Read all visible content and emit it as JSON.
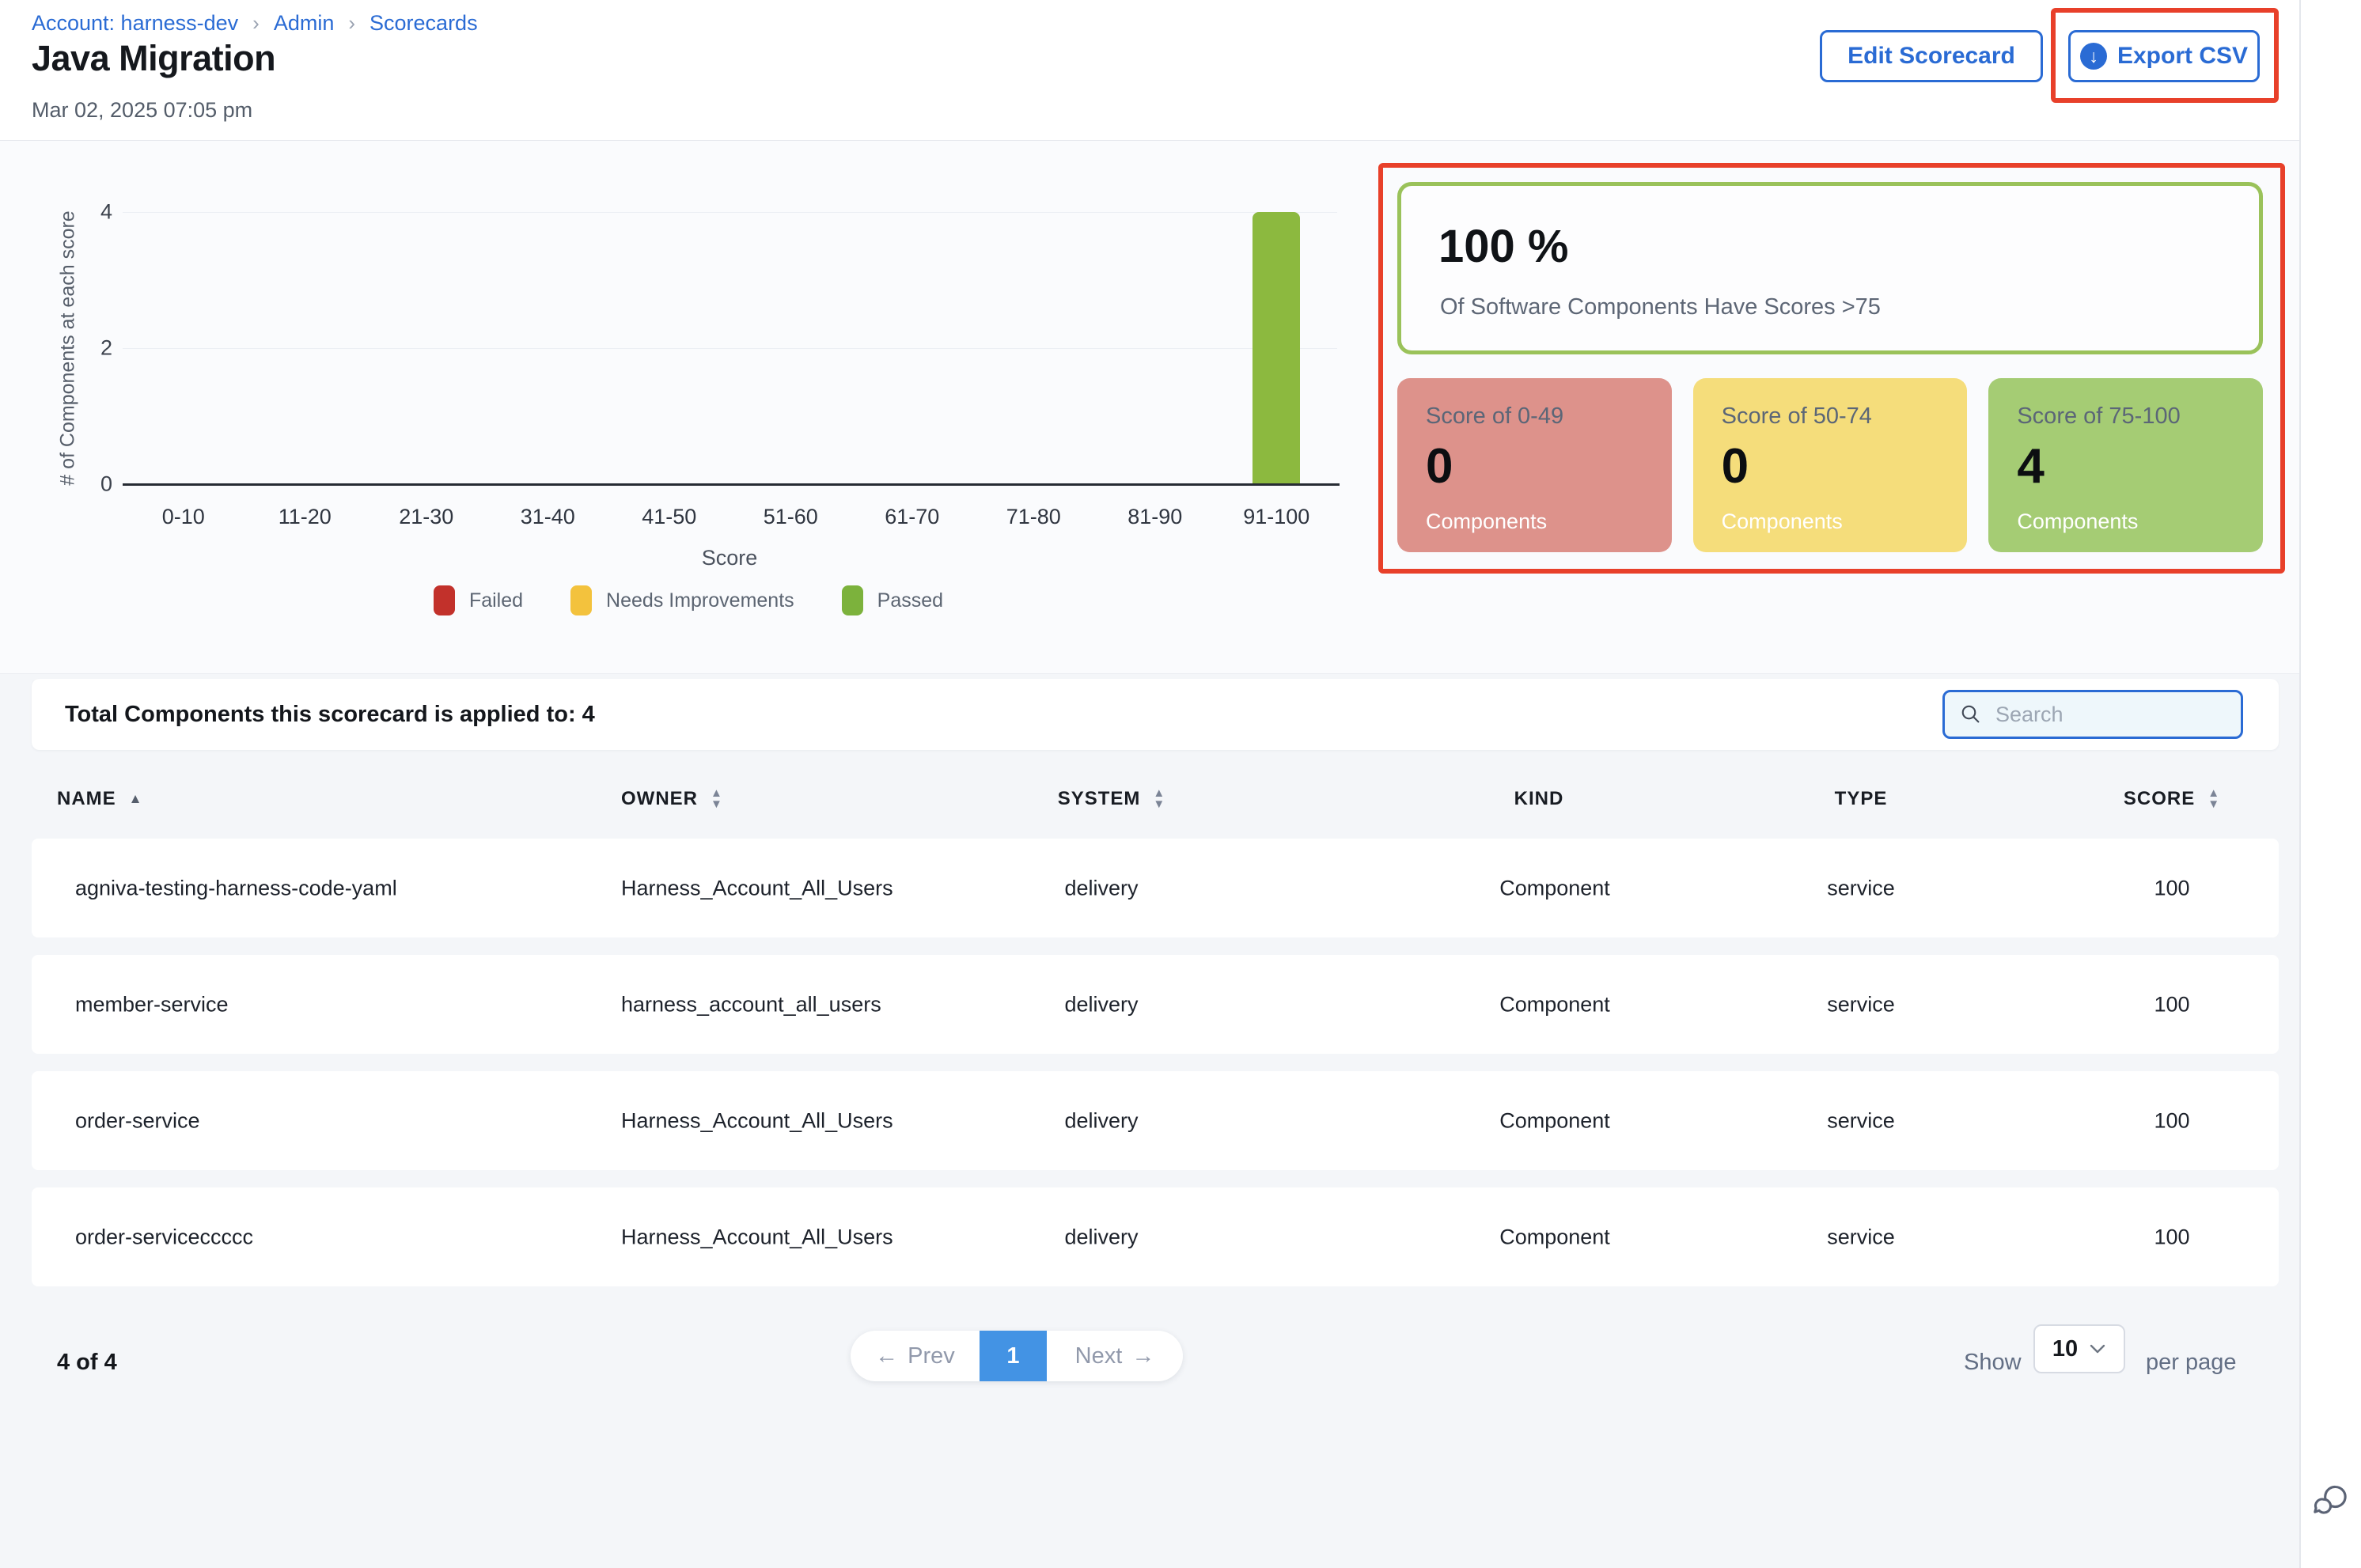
{
  "breadcrumb": {
    "account_link": "Account: harness-dev",
    "admin_link": "Admin",
    "scorecards_link": "Scorecards"
  },
  "header": {
    "title": "Java Migration",
    "timestamp": "Mar 02, 2025 07:05 pm",
    "edit_button": "Edit Scorecard",
    "export_button": "Export CSV"
  },
  "icons": {
    "breadcrumb_separator": "›",
    "download_arrow": "↓",
    "prev_arrow": "←",
    "next_arrow": "→",
    "sort_asc": "▲",
    "sort_desc": "▼"
  },
  "chart_data": {
    "type": "bar",
    "title": "",
    "categories": [
      "0-10",
      "11-20",
      "21-30",
      "31-40",
      "41-50",
      "51-60",
      "61-70",
      "71-80",
      "81-90",
      "91-100"
    ],
    "values": [
      0,
      0,
      0,
      0,
      0,
      0,
      0,
      0,
      0,
      4
    ],
    "xlabel": "Score",
    "ylabel": "# of Components at each score",
    "ylim": [
      0,
      4
    ],
    "yticks": [
      0,
      2,
      4
    ],
    "grid": "horizontal",
    "bar_color": "#8cb93f",
    "legend_position": "bottom",
    "legend": [
      {
        "label": "Failed",
        "color": "#c2312b"
      },
      {
        "label": "Needs Improvements",
        "color": "#f3c23d"
      },
      {
        "label": "Passed",
        "color": "#7cb23c"
      }
    ]
  },
  "summary": {
    "headline_value": "100 %",
    "headline_caption": "Of Software Components Have Scores >75",
    "cards": [
      {
        "title": "Score of 0-49",
        "count": "0",
        "label": "Components",
        "bg": "#dd928b"
      },
      {
        "title": "Score of 50-74",
        "count": "0",
        "label": "Components",
        "bg": "#f5dd7b"
      },
      {
        "title": "Score of 75-100",
        "count": "4",
        "label": "Components",
        "bg": "#a5cc74"
      }
    ]
  },
  "table": {
    "total_label": "Total Components this scorecard is applied to: 4",
    "search_placeholder": "Search",
    "columns": [
      {
        "label": "NAME",
        "sort": "asc"
      },
      {
        "label": "OWNER",
        "sort": "both"
      },
      {
        "label": "SYSTEM",
        "sort": "both"
      },
      {
        "label": "KIND",
        "sort": "none"
      },
      {
        "label": "TYPE",
        "sort": "none"
      },
      {
        "label": "SCORE",
        "sort": "both"
      }
    ],
    "rows": [
      {
        "name": "agniva-testing-harness-code-yaml",
        "owner": "Harness_Account_All_Users",
        "system": "delivery",
        "kind": "Component",
        "type": "service",
        "score": "100"
      },
      {
        "name": "member-service",
        "owner": "harness_account_all_users",
        "system": "delivery",
        "kind": "Component",
        "type": "service",
        "score": "100"
      },
      {
        "name": "order-service",
        "owner": "Harness_Account_All_Users",
        "system": "delivery",
        "kind": "Component",
        "type": "service",
        "score": "100"
      },
      {
        "name": "order-serviceccccc",
        "owner": "Harness_Account_All_Users",
        "system": "delivery",
        "kind": "Component",
        "type": "service",
        "score": "100"
      }
    ]
  },
  "pagination": {
    "summary": "4 of 4",
    "prev_label": "Prev",
    "page": "1",
    "next_label": "Next",
    "show_label": "Show",
    "page_size": "10",
    "per_page_label": "per page"
  },
  "colors": {
    "accent_blue": "#2a6bd4",
    "annotation_red": "#e8402a",
    "pagination_blue": "#4393e4",
    "headline_border_green": "#9ac25a"
  }
}
